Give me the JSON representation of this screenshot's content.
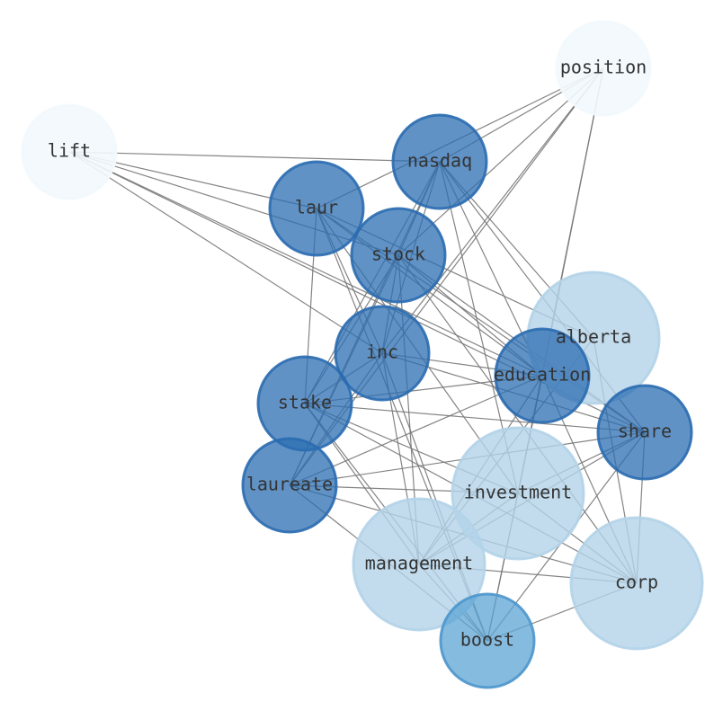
{
  "nodes": [
    {
      "label": "position"
    },
    {
      "label": "lift"
    },
    {
      "label": "nasdaq"
    },
    {
      "label": "laur"
    },
    {
      "label": "stock"
    },
    {
      "label": "alberta"
    },
    {
      "label": "inc"
    },
    {
      "label": "education"
    },
    {
      "label": "stake"
    },
    {
      "label": "share"
    },
    {
      "label": "laureate"
    },
    {
      "label": "investment"
    },
    {
      "label": "management"
    },
    {
      "label": "corp"
    },
    {
      "label": "boost"
    }
  ]
}
